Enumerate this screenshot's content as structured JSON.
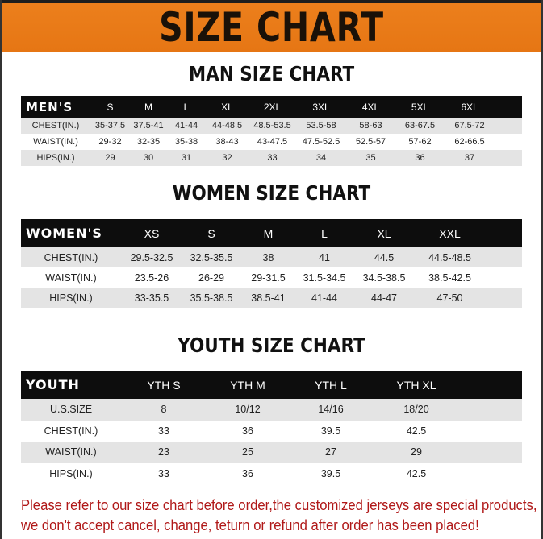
{
  "banner": {
    "title": "SIZE CHART"
  },
  "men": {
    "title": "MAN SIZE CHART",
    "header_label": "MEN'S",
    "sizes": [
      "S",
      "M",
      "L",
      "XL",
      "2XL",
      "3XL",
      "4XL",
      "5XL",
      "6XL"
    ],
    "rows": [
      {
        "label": "CHEST(IN.)",
        "values": [
          "35-37.5",
          "37.5-41",
          "41-44",
          "44-48.5",
          "48.5-53.5",
          "53.5-58",
          "58-63",
          "63-67.5",
          "67.5-72"
        ]
      },
      {
        "label": "WAIST(IN.)",
        "values": [
          "29-32",
          "32-35",
          "35-38",
          "38-43",
          "43-47.5",
          "47.5-52.5",
          "52.5-57",
          "57-62",
          "62-66.5"
        ]
      },
      {
        "label": "HIPS(IN.)",
        "values": [
          "29",
          "30",
          "31",
          "32",
          "33",
          "34",
          "35",
          "36",
          "37"
        ]
      }
    ]
  },
  "women": {
    "title": "WOMEN SIZE CHART",
    "header_label": "WOMEN'S",
    "sizes": [
      "XS",
      "S",
      "M",
      "L",
      "XL",
      "XXL"
    ],
    "rows": [
      {
        "label": "CHEST(IN.)",
        "values": [
          "29.5-32.5",
          "32.5-35.5",
          "38",
          "41",
          "44.5",
          "44.5-48.5"
        ]
      },
      {
        "label": "WAIST(IN.)",
        "values": [
          "23.5-26",
          "26-29",
          "29-31.5",
          "31.5-34.5",
          "34.5-38.5",
          "38.5-42.5"
        ]
      },
      {
        "label": "HIPS(IN.)",
        "values": [
          "33-35.5",
          "35.5-38.5",
          "38.5-41",
          "41-44",
          "44-47",
          "47-50"
        ]
      }
    ]
  },
  "youth": {
    "title": "YOUTH SIZE CHART",
    "header_label": "YOUTH",
    "sizes": [
      "YTH S",
      "YTH M",
      "YTH L",
      "YTH XL"
    ],
    "rows": [
      {
        "label": "U.S.SIZE",
        "values": [
          "8",
          "10/12",
          "14/16",
          "18/20"
        ]
      },
      {
        "label": "CHEST(IN.)",
        "values": [
          "33",
          "36",
          "39.5",
          "42.5"
        ]
      },
      {
        "label": "WAIST(IN.)",
        "values": [
          "23",
          "25",
          "27",
          "29"
        ]
      },
      {
        "label": "HIPS(IN.)",
        "values": [
          "33",
          "36",
          "39.5",
          "42.5"
        ]
      }
    ]
  },
  "notice": {
    "line1": "Please refer to our size chart before order,the customized jerseys are special products,",
    "line2": "we don't accept cancel, change, teturn or refund after order has been placed!"
  },
  "colors": {
    "banner": "#e87a18",
    "header_row": "#0d0d0d",
    "alt_row": "#e4e4e4",
    "notice": "#b01818"
  }
}
